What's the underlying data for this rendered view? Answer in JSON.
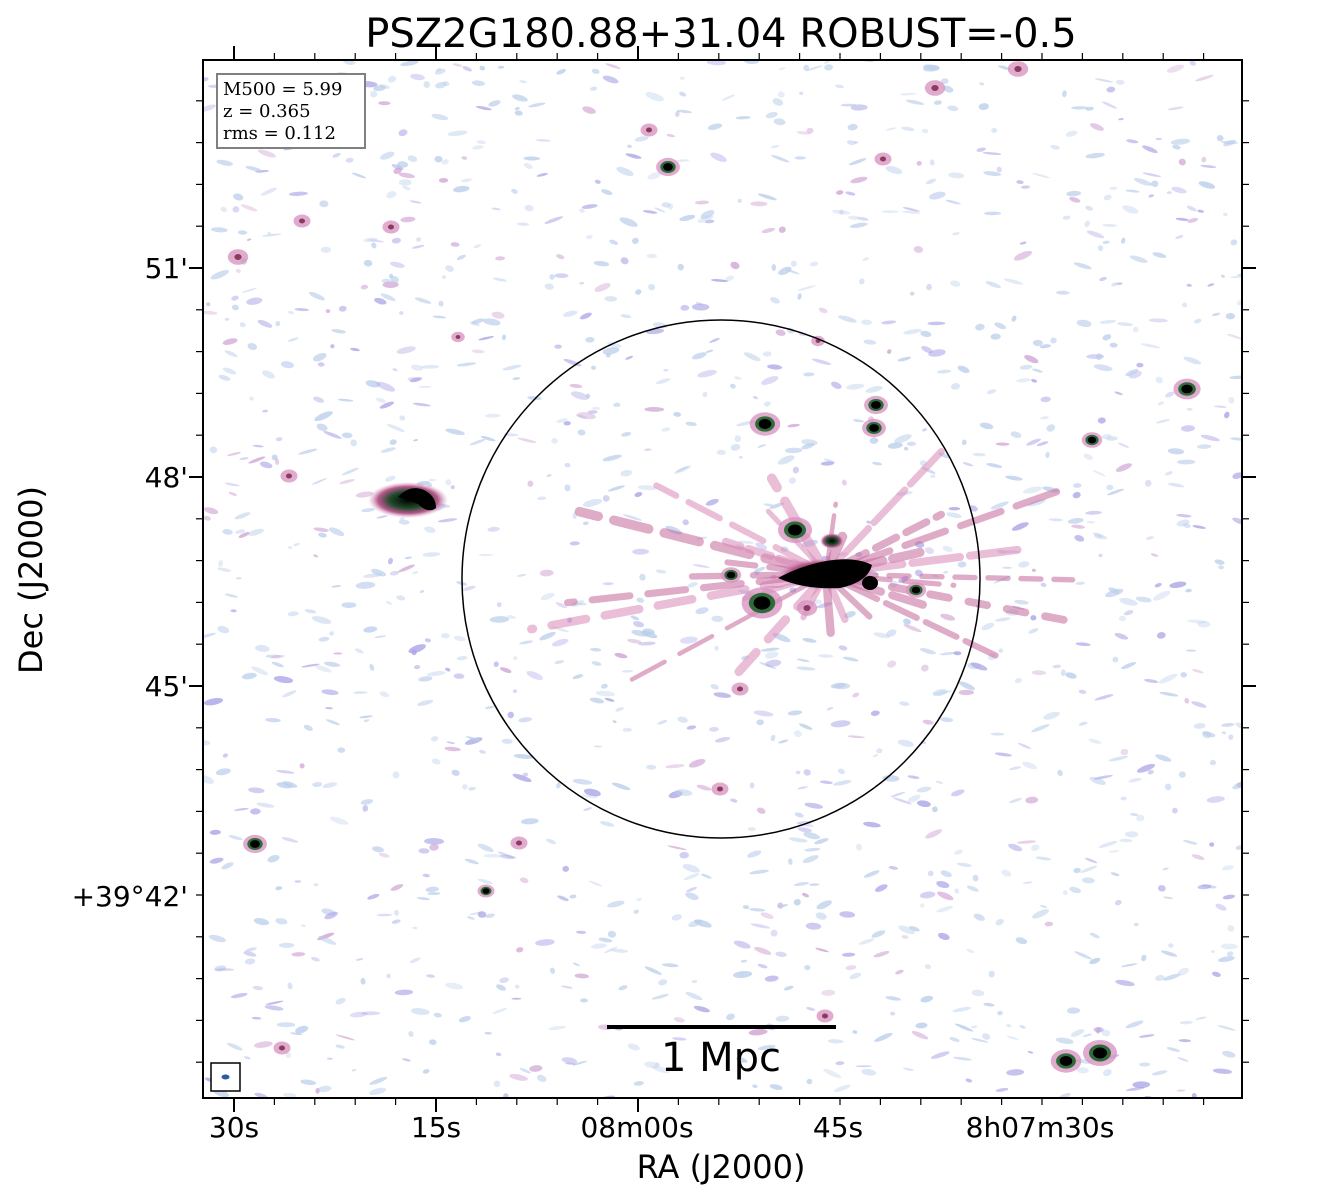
{
  "title": "PSZ2G180.88+31.04 ROBUST=-0.5",
  "axes": {
    "xlabel": "RA (J2000)",
    "ylabel": "Dec (J2000)",
    "x_ticks": [
      "30s",
      "15s",
      "08m00s",
      "45s",
      "8h07m30s"
    ],
    "y_ticks": [
      "51'",
      "48'",
      "45'",
      "+39°42'"
    ]
  },
  "info_box": {
    "lines": [
      "M500 = 5.99",
      "z = 0.365",
      "rms = 0.112"
    ]
  },
  "scale_bar": {
    "label": "1 Mpc"
  },
  "colors": {
    "noise_light": "#b9cdea",
    "noise_purple": "#a9a4e6",
    "emission_pink": "#c4689a",
    "emission_green": "#2f6b3a",
    "core": "#000000",
    "frame": "#000000"
  }
}
